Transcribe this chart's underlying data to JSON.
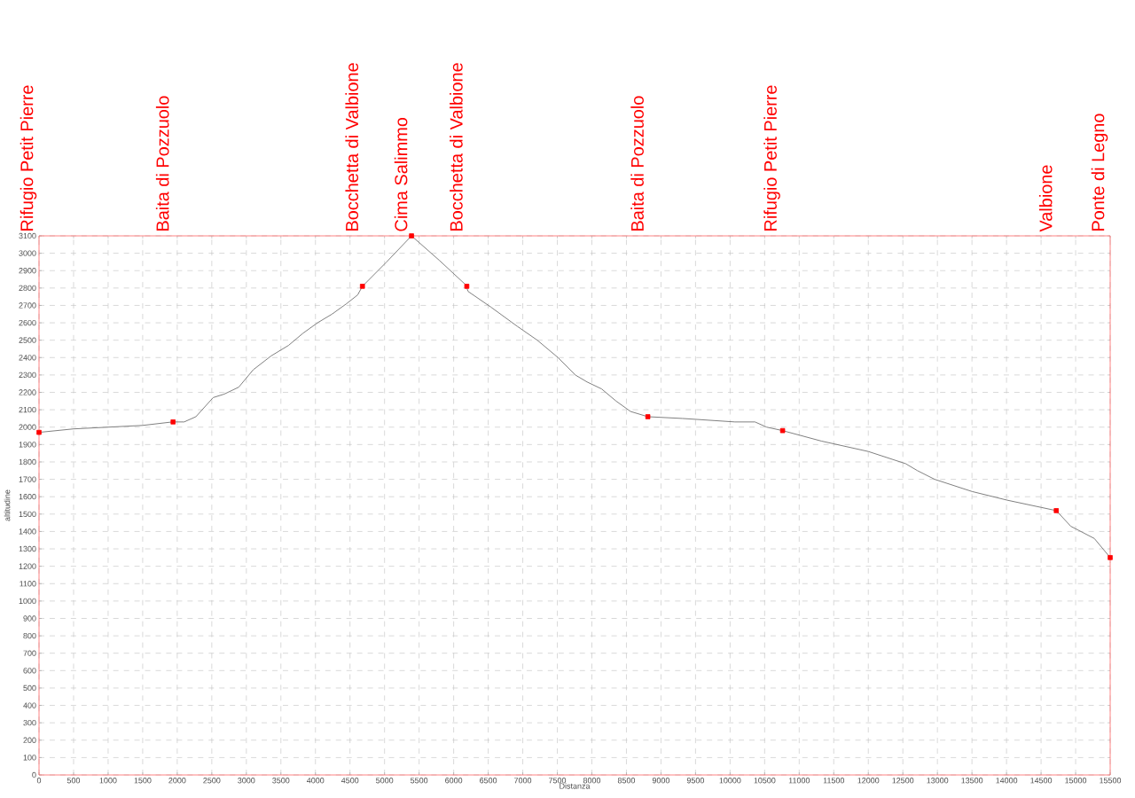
{
  "chart_data": {
    "type": "line",
    "xlabel": "Distanza",
    "ylabel": "altitudine",
    "xlim": [
      0,
      15500
    ],
    "ylim": [
      0,
      3100
    ],
    "xticks": [
      0,
      500,
      1000,
      1500,
      2000,
      2500,
      3000,
      3500,
      4000,
      4500,
      5000,
      5500,
      6000,
      6500,
      7000,
      7500,
      8000,
      8500,
      9000,
      9500,
      10000,
      10500,
      11000,
      11500,
      12000,
      12500,
      13000,
      13500,
      14000,
      14500,
      15000,
      15500
    ],
    "yticks": [
      0,
      100,
      200,
      300,
      400,
      500,
      600,
      700,
      800,
      900,
      1000,
      1100,
      1200,
      1300,
      1400,
      1500,
      1600,
      1700,
      1800,
      1900,
      2000,
      2100,
      2200,
      2300,
      2400,
      2500,
      2600,
      2700,
      2800,
      2900,
      3000,
      3100
    ],
    "grid": true,
    "series": [
      {
        "color": "#808080",
        "marker": "none",
        "x": [
          0,
          500,
          1000,
          1500,
          1930,
          2100,
          2270,
          2520,
          2680,
          2890,
          3100,
          3360,
          3610,
          3820,
          4030,
          4240,
          4450,
          4610,
          4680,
          5030,
          5390,
          5790,
          6170,
          6210,
          6540,
          6920,
          7210,
          7510,
          7760,
          7930,
          8140,
          8350,
          8560,
          8810,
          9310,
          10070,
          10360,
          10530,
          10760,
          11320,
          12000,
          12540,
          12710,
          12960,
          13500,
          14010,
          14720,
          14930,
          15270,
          15500
        ],
        "values": [
          1970,
          1990,
          2000,
          2010,
          2030,
          2030,
          2060,
          2170,
          2190,
          2230,
          2330,
          2410,
          2470,
          2540,
          2600,
          2650,
          2710,
          2760,
          2810,
          2950,
          3100,
          2960,
          2820,
          2780,
          2690,
          2580,
          2500,
          2400,
          2300,
          2260,
          2220,
          2150,
          2090,
          2060,
          2050,
          2030,
          2030,
          2000,
          1980,
          1920,
          1860,
          1790,
          1750,
          1700,
          1630,
          1580,
          1520,
          1430,
          1360,
          1250
        ]
      },
      {
        "type": "scatter",
        "color": "#ff0000",
        "marker": "square",
        "x": [
          0,
          1940,
          4680,
          5390,
          6190,
          8810,
          10760,
          14720,
          15500
        ],
        "values": [
          1970,
          2030,
          2810,
          3100,
          2810,
          2060,
          1980,
          1520,
          1250
        ]
      }
    ],
    "annotations": [
      "Rifugio Petit Pierre",
      "Baita di Pozzuolo",
      "Bocchetta di Valbione",
      "Cima Salimmo",
      "Bocchetta di Valbione",
      "Baita di Pozzuolo",
      "Rifugio Petit Pierre",
      "Valbione",
      "Ponte di Legno"
    ]
  }
}
